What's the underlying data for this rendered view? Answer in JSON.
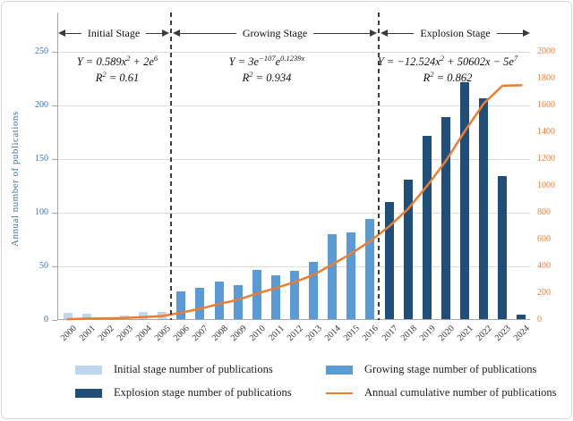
{
  "figure": {
    "y_axis_title": "Annual number of publications",
    "stages": [
      {
        "label": "Initial Stage",
        "equation": "Y = 0.589x^{2} + 2e^{6}",
        "r2": "R^{2} = 0.61",
        "from": 2000,
        "to": 2005,
        "color": "#bdd7ee"
      },
      {
        "label": "Growing Stage",
        "equation": "Y = 3e^{−107}e^{0.1239x}",
        "r2": "R^{2} = 0.934",
        "from": 2006,
        "to": 2016,
        "color": "#5b9bd5"
      },
      {
        "label": "Explosion Stage",
        "equation": "Y = −12.524x^{2} + 50602x − 5e^{7}",
        "r2": "R^{2} = 0.862",
        "from": 2017,
        "to": 2024,
        "color": "#1f4e79"
      }
    ]
  },
  "chart_data": {
    "type": "bar",
    "combo": "bar+line",
    "title": "",
    "categories": [
      2000,
      2001,
      2002,
      2003,
      2004,
      2005,
      2006,
      2007,
      2008,
      2009,
      2010,
      2011,
      2012,
      2013,
      2014,
      2015,
      2016,
      2017,
      2018,
      2019,
      2020,
      2021,
      2022,
      2023,
      2024
    ],
    "series": [
      {
        "name": "Annual number of publications",
        "type": "bar",
        "axis": "left",
        "values": [
          6,
          5,
          1,
          3,
          7,
          7,
          26,
          29,
          35,
          32,
          46,
          41,
          45,
          53,
          79,
          81,
          93,
          109,
          130,
          171,
          188,
          221,
          206,
          133,
          4
        ]
      },
      {
        "name": "Annual cumulative number of publications",
        "type": "line",
        "axis": "right",
        "color": "#ed7d31",
        "values": [
          6,
          11,
          12,
          15,
          22,
          29,
          55,
          84,
          119,
          151,
          197,
          238,
          283,
          336,
          415,
          496,
          589,
          698,
          828,
          999,
          1187,
          1408,
          1614,
          1747,
          1751
        ]
      }
    ],
    "left_axis": {
      "label": "Annual number of publications",
      "range": [
        0,
        250
      ],
      "ticks": [
        0,
        50,
        100,
        150,
        200,
        250
      ],
      "color": "#2e75b6"
    },
    "right_axis": {
      "label": "",
      "range": [
        0,
        2000
      ],
      "ticks": [
        0,
        200,
        400,
        600,
        800,
        1000,
        1200,
        1400,
        1600,
        1800,
        2000
      ],
      "color": "#ed7d31"
    },
    "grid": true,
    "legend_position": "bottom"
  },
  "legend": {
    "items": [
      {
        "label": "Initial stage number of publications",
        "color": "#bdd7ee",
        "type": "swatch"
      },
      {
        "label": "Growing stage number of publications",
        "color": "#5b9bd5",
        "type": "swatch"
      },
      {
        "label": "Explosion stage number of publications",
        "color": "#1f4e79",
        "type": "swatch"
      },
      {
        "label": "Annual cumulative number of publications",
        "color": "#ed7d31",
        "type": "line"
      }
    ]
  }
}
